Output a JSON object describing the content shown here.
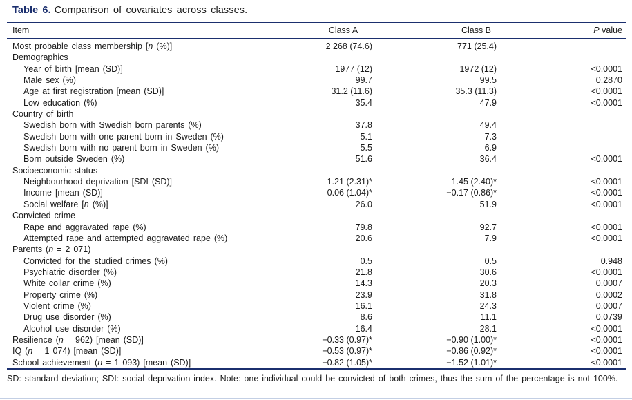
{
  "accent_color": "#1b2f6e",
  "caption": {
    "label": "Table 6.",
    "text": "Comparison of covariates across classes."
  },
  "table": {
    "columns": [
      "Item",
      "Class A",
      "Class B",
      "_P_ value"
    ],
    "rows": [
      {
        "item": "Most probable class membership [_n_ (%)]",
        "indent": 0,
        "a": "2 268 (74.6)",
        "b": "771 (25.4)",
        "p": ""
      },
      {
        "item": "Demographics",
        "indent": 0,
        "a": "",
        "b": "",
        "p": ""
      },
      {
        "item": "Year of birth [mean (SD)]",
        "indent": 1,
        "a": "1977 (12)",
        "b": "1972 (12)",
        "p": "<0.0001"
      },
      {
        "item": "Male sex (%)",
        "indent": 1,
        "a": "99.7",
        "b": "99.5",
        "p": "0.2870"
      },
      {
        "item": "Age at first registration [mean (SD)]",
        "indent": 1,
        "a": "31.2 (11.6)",
        "b": "35.3 (11.3)",
        "p": "<0.0001"
      },
      {
        "item": "Low education (%)",
        "indent": 1,
        "a": "35.4",
        "b": "47.9",
        "p": "<0.0001"
      },
      {
        "item": "Country of birth",
        "indent": 0,
        "a": "",
        "b": "",
        "p": ""
      },
      {
        "item": "Swedish born with Swedish born parents (%)",
        "indent": 1,
        "a": "37.8",
        "b": "49.4",
        "p": ""
      },
      {
        "item": "Swedish born with one parent born in Sweden (%)",
        "indent": 1,
        "a": "5.1",
        "b": "7.3",
        "p": ""
      },
      {
        "item": "Swedish born with no parent born in Sweden (%)",
        "indent": 1,
        "a": "5.5",
        "b": "6.9",
        "p": ""
      },
      {
        "item": "Born outside Sweden (%)",
        "indent": 1,
        "a": "51.6",
        "b": "36.4",
        "p": "<0.0001"
      },
      {
        "item": "Socioeconomic status",
        "indent": 0,
        "a": "",
        "b": "",
        "p": ""
      },
      {
        "item": "Neighbourhood deprivation [SDI (SD)]",
        "indent": 1,
        "a": "1.21 (2.31)*",
        "b": "1.45 (2.40)*",
        "p": "<0.0001"
      },
      {
        "item": "Income [mean (SD)]",
        "indent": 1,
        "a": "0.06 (1.04)*",
        "b": "−0.17 (0.86)*",
        "p": "<0.0001"
      },
      {
        "item": "Social welfare [_n_ (%)]",
        "indent": 1,
        "a": "26.0",
        "b": "51.9",
        "p": "<0.0001"
      },
      {
        "item": "Convicted crime",
        "indent": 0,
        "a": "",
        "b": "",
        "p": ""
      },
      {
        "item": "Rape and aggravated rape (%)",
        "indent": 1,
        "a": "79.8",
        "b": "92.7",
        "p": "<0.0001"
      },
      {
        "item": "Attempted rape and attempted aggravated rape (%)",
        "indent": 1,
        "a": "20.6",
        "b": "7.9",
        "p": "<0.0001"
      },
      {
        "item": "Parents (_n_ = 2 071)",
        "indent": 0,
        "a": "",
        "b": "",
        "p": ""
      },
      {
        "item": "Convicted for the studied crimes (%)",
        "indent": 1,
        "a": "0.5",
        "b": "0.5",
        "p": "0.948"
      },
      {
        "item": "Psychiatric disorder (%)",
        "indent": 1,
        "a": "21.8",
        "b": "30.6",
        "p": "<0.0001"
      },
      {
        "item": "White collar crime (%)",
        "indent": 1,
        "a": "14.3",
        "b": "20.3",
        "p": "0.0007"
      },
      {
        "item": "Property crime (%)",
        "indent": 1,
        "a": "23.9",
        "b": "31.8",
        "p": "0.0002"
      },
      {
        "item": "Violent crime (%)",
        "indent": 1,
        "a": "16.1",
        "b": "24.3",
        "p": "0.0007"
      },
      {
        "item": "Drug use disorder (%)",
        "indent": 1,
        "a": "8.6",
        "b": "11.1",
        "p": "0.0739"
      },
      {
        "item": "Alcohol use disorder (%)",
        "indent": 1,
        "a": "16.4",
        "b": "28.1",
        "p": "<0.0001"
      },
      {
        "item": "Resilience (_n_ = 962) [mean (SD)]",
        "indent": 0,
        "a": "−0.33 (0.97)*",
        "b": "−0.90 (1.00)*",
        "p": "<0.0001"
      },
      {
        "item": "IQ (_n_ = 1 074) [mean (SD)]",
        "indent": 0,
        "a": "−0.53 (0.97)*",
        "b": "−0.86 (0.92)*",
        "p": "<0.0001"
      },
      {
        "item": "School achievement (_n_ = 1 093) [mean (SD)]",
        "indent": 0,
        "a": "−0.82 (1.05)*",
        "b": "−1.52 (1.01)*",
        "p": "<0.0001"
      }
    ]
  },
  "footnote": "SD: standard deviation; SDI: social deprivation index. Note: one individual could be convicted of both crimes, thus the sum of the percentage is not 100%."
}
